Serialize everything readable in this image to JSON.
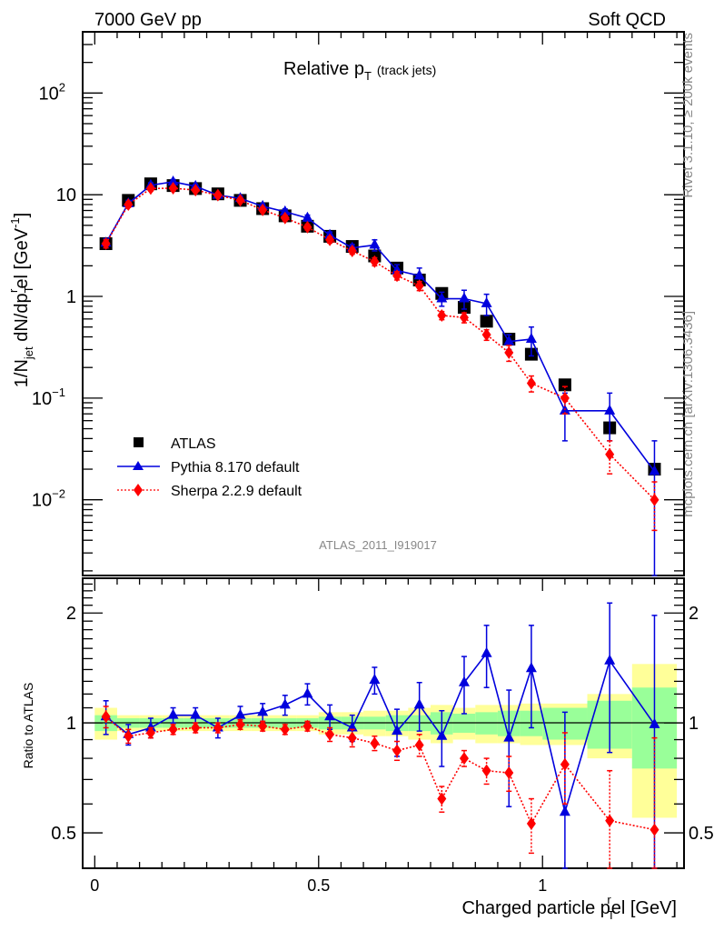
{
  "chart_data": {
    "type": "scatter",
    "header_left": "7000 GeV pp",
    "header_right": "Soft QCD",
    "title": "Relative p",
    "title_sub": "T",
    "title_suffix": "(track jets)",
    "ylabel": "1/N_jet dN/dp_T^rel [GeV^-1]",
    "ylabel_parts": {
      "a": "1/N",
      "a_sub": "jet",
      "b": " dN/dp",
      "b_sub": "T",
      "b_sup": "r",
      "c": "el [GeV",
      "c_sup": "-1",
      "d": "]"
    },
    "xlabel": "Charged particle p_T^rel [GeV]",
    "xlabel_parts": {
      "a": "Charged particle p",
      "a_sub": "T",
      "a_sup": "r",
      "b": "el [GeV]"
    },
    "ratio_ylabel": "Ratio to ATLAS",
    "side_text_top": "Rivet 3.1.10, ≥ 200k events",
    "side_text_bottom": "mcplots.cern.ch [arXiv:1306.3436]",
    "analysis_id": "ATLAS_2011_I919017",
    "xlim": [
      -0.027,
      1.316
    ],
    "ylim": [
      0.0018,
      400
    ],
    "yscale": "log",
    "ratio_ylim": [
      0.4,
      2.49
    ],
    "ratio_yscale": "log",
    "x_ticks": [
      {
        "v": 0,
        "label": "0"
      },
      {
        "v": 0.5,
        "label": "0.5"
      },
      {
        "v": 1,
        "label": "1"
      }
    ],
    "y_ticks": [
      {
        "v": 100,
        "base": "10",
        "exp": "2"
      },
      {
        "v": 10,
        "base": "10",
        "exp": ""
      },
      {
        "v": 1,
        "base": "1",
        "exp": ""
      },
      {
        "v": 0.1,
        "base": "10",
        "exp": "−1"
      },
      {
        "v": 0.01,
        "base": "10",
        "exp": "−2"
      }
    ],
    "ratio_ticks": [
      {
        "v": 0.5,
        "label": "0.5"
      },
      {
        "v": 1,
        "label": "1"
      },
      {
        "v": 2,
        "label": "2"
      }
    ],
    "legend_position": "center-left",
    "bins": [
      [
        0,
        0.05
      ],
      [
        0.05,
        0.1
      ],
      [
        0.1,
        0.15
      ],
      [
        0.15,
        0.2
      ],
      [
        0.2,
        0.25
      ],
      [
        0.25,
        0.3
      ],
      [
        0.3,
        0.35
      ],
      [
        0.35,
        0.4
      ],
      [
        0.4,
        0.45
      ],
      [
        0.45,
        0.5
      ],
      [
        0.5,
        0.55
      ],
      [
        0.55,
        0.6
      ],
      [
        0.6,
        0.65
      ],
      [
        0.65,
        0.7
      ],
      [
        0.7,
        0.75
      ],
      [
        0.75,
        0.8
      ],
      [
        0.8,
        0.85
      ],
      [
        0.85,
        0.9
      ],
      [
        0.9,
        0.95
      ],
      [
        0.95,
        1.0
      ],
      [
        1.0,
        1.1
      ],
      [
        1.1,
        1.2
      ],
      [
        1.2,
        1.3
      ]
    ],
    "x": [
      0.025,
      0.075,
      0.125,
      0.175,
      0.225,
      0.275,
      0.325,
      0.375,
      0.425,
      0.475,
      0.525,
      0.575,
      0.625,
      0.675,
      0.725,
      0.775,
      0.825,
      0.875,
      0.925,
      0.975,
      1.05,
      1.15,
      1.25
    ],
    "series": [
      {
        "name": "ATLAS",
        "color": "#000000",
        "marker": "square",
        "values": [
          3.3,
          8.8,
          12.8,
          12.3,
          11.5,
          10.2,
          8.8,
          7.3,
          6.2,
          4.9,
          3.9,
          3.1,
          2.5,
          1.9,
          1.45,
          1.07,
          0.78,
          0.57,
          0.38,
          0.27,
          0.135,
          0.051,
          0.02
        ],
        "stat_band": [
          0.05,
          0.03,
          0.03,
          0.03,
          0.03,
          0.03,
          0.03,
          0.03,
          0.03,
          0.03,
          0.04,
          0.04,
          0.04,
          0.05,
          0.05,
          0.07,
          0.06,
          0.07,
          0.08,
          0.08,
          0.1,
          0.15,
          0.25
        ],
        "total_band": [
          0.1,
          0.05,
          0.05,
          0.05,
          0.05,
          0.05,
          0.05,
          0.05,
          0.05,
          0.05,
          0.07,
          0.07,
          0.08,
          0.08,
          0.1,
          0.12,
          0.1,
          0.12,
          0.12,
          0.13,
          0.13,
          0.2,
          0.45
        ]
      },
      {
        "name": "Pythia 8.170 default",
        "color": "#0000dd",
        "marker": "triangle",
        "line": "solid",
        "values": [
          3.35,
          8.2,
          12.4,
          13.4,
          12.1,
          9.9,
          9.2,
          7.7,
          6.8,
          5.9,
          4.0,
          3.0,
          3.2,
          1.8,
          1.6,
          0.95,
          0.95,
          0.85,
          0.36,
          0.38,
          0.075,
          0.075,
          0.019
        ],
        "errors": [
          0.35,
          0.6,
          0.7,
          0.7,
          0.6,
          0.5,
          0.5,
          0.45,
          0.45,
          0.4,
          0.3,
          0.25,
          0.4,
          0.25,
          0.3,
          0.15,
          0.2,
          0.2,
          0.06,
          0.12,
          0.037,
          0.037,
          0.019
        ],
        "ratio": [
          1.04,
          0.93,
          0.97,
          1.05,
          1.05,
          0.97,
          1.05,
          1.07,
          1.12,
          1.2,
          1.04,
          0.97,
          1.31,
          0.95,
          1.12,
          0.92,
          1.29,
          1.55,
          0.91,
          1.41,
          0.57,
          1.48,
          0.99
        ],
        "ratio_errors": [
          0.11,
          0.06,
          0.06,
          0.05,
          0.05,
          0.06,
          0.06,
          0.06,
          0.07,
          0.08,
          0.08,
          0.08,
          0.11,
          0.14,
          0.17,
          0.16,
          0.23,
          0.3,
          0.32,
          0.44,
          0.5,
          0.65,
          0.98
        ]
      },
      {
        "name": "Sherpa 2.2.9 default",
        "color": "#ff0000",
        "marker": "diamond",
        "line": "dotted",
        "values": [
          3.3,
          8.0,
          11.5,
          11.6,
          11.1,
          9.9,
          8.8,
          7.1,
          5.9,
          4.8,
          3.6,
          2.8,
          2.2,
          1.6,
          1.27,
          0.65,
          0.62,
          0.42,
          0.28,
          0.14,
          0.1,
          0.028,
          0.01
        ],
        "errors": [
          0.3,
          0.5,
          0.6,
          0.6,
          0.5,
          0.5,
          0.45,
          0.4,
          0.35,
          0.3,
          0.25,
          0.2,
          0.2,
          0.15,
          0.13,
          0.06,
          0.07,
          0.05,
          0.05,
          0.025,
          0.03,
          0.01,
          0.005
        ],
        "ratio": [
          1.04,
          0.92,
          0.94,
          0.96,
          0.97,
          0.97,
          0.99,
          0.98,
          0.96,
          0.98,
          0.93,
          0.91,
          0.88,
          0.84,
          0.87,
          0.62,
          0.8,
          0.74,
          0.73,
          0.53,
          0.77,
          0.54,
          0.51
        ],
        "ratio_errors": [
          0.07,
          0.04,
          0.03,
          0.03,
          0.03,
          0.03,
          0.03,
          0.03,
          0.03,
          0.03,
          0.04,
          0.05,
          0.04,
          0.05,
          0.06,
          0.05,
          0.04,
          0.06,
          0.08,
          0.09,
          0.17,
          0.2,
          0.4
        ]
      }
    ]
  }
}
